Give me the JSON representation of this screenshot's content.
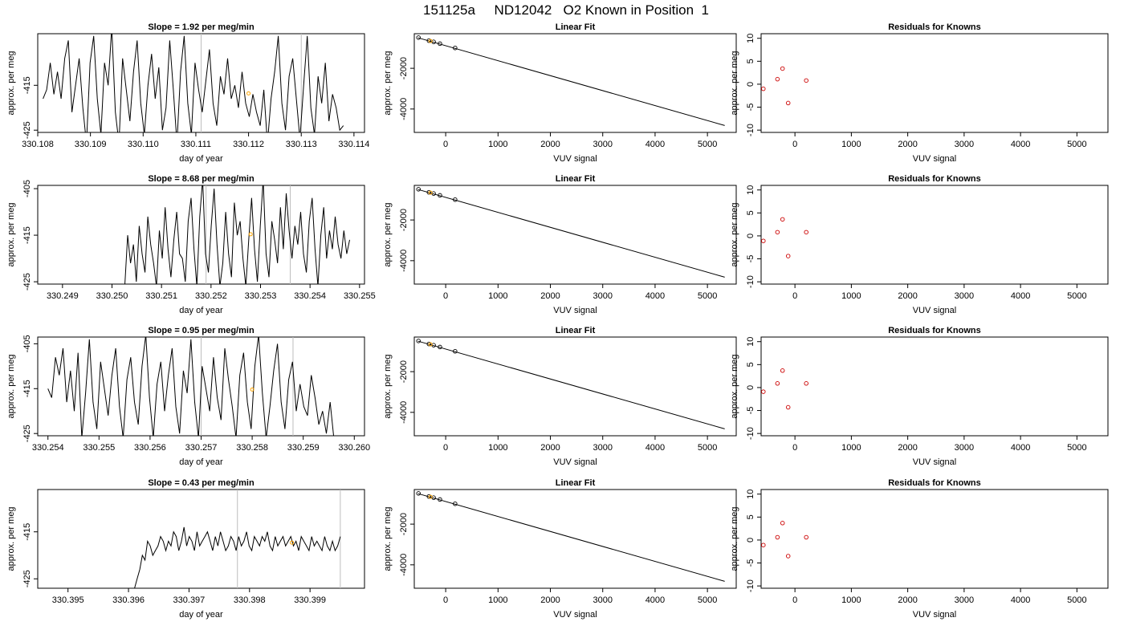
{
  "page_title": "151125a     ND12042   O2 Known in Position  1",
  "colors": {
    "trace": "#000000",
    "highlight": "#FFA500",
    "residual": "#CC0000",
    "vline": "#BEBEBE",
    "axis": "#000000"
  },
  "chart_data": [
    {
      "type": "line",
      "row": 0,
      "panel": "time",
      "title": "Slope =  1.92  per meg/min",
      "xlabel": "day of year",
      "ylabel": "approx. per meg",
      "xlim": [
        330.108,
        330.1142
      ],
      "ylim": [
        -425.5,
        -403.5
      ],
      "xticks": [
        "330.108",
        "330.109",
        "330.110",
        "330.111",
        "330.112",
        "330.113",
        "330.114"
      ],
      "yticks": [
        "-415",
        "-425"
      ],
      "vlines": [
        330.1111,
        330.113
      ],
      "highlight_points": [
        {
          "x": 330.112,
          "y": -416.8
        }
      ],
      "series": [
        {
          "x_start": 330.1081,
          "x_end": 330.1138,
          "values": [
            -418,
            -416,
            -410,
            -417,
            -412,
            -418,
            -409,
            -405,
            -421,
            -415,
            -409,
            -420,
            -428,
            -410,
            -404,
            -418,
            -426,
            -410,
            -415,
            -402,
            -421,
            -428,
            -409,
            -416,
            -423,
            -412,
            -405,
            -419,
            -426,
            -415,
            -408,
            -418,
            -411,
            -425,
            -420,
            -405,
            -416,
            -428,
            -412,
            -404,
            -419,
            -426,
            -410,
            -416,
            -421,
            -414,
            -407,
            -419,
            -424,
            -413,
            -417,
            -409,
            -418,
            -415,
            -420,
            -412,
            -419,
            -422,
            -417,
            -421,
            -424,
            -416,
            -428,
            -418,
            -412,
            -404,
            -419,
            -425,
            -413,
            -409,
            -418,
            -427,
            -415,
            -404,
            -420,
            -426,
            -413,
            -419,
            -410,
            -423,
            -417,
            -420,
            -425,
            -424
          ]
        }
      ]
    },
    {
      "type": "scatter",
      "row": 0,
      "panel": "fit",
      "title": "Linear Fit",
      "xlabel": "VUV signal",
      "ylabel": "approx. per meg",
      "xlim": [
        -600,
        5550
      ],
      "ylim": [
        -5150,
        -300
      ],
      "xticks": [
        "0",
        "1000",
        "2000",
        "3000",
        "4000",
        "5000"
      ],
      "yticks": [
        "-2000",
        "-4000"
      ],
      "fit_line": {
        "x": [
          -530,
          5330
        ],
        "y": [
          -500,
          -4810
        ]
      },
      "points": [
        {
          "x": -520,
          "y": -490
        },
        {
          "x": -320,
          "y": -640
        },
        {
          "x": -230,
          "y": -700
        },
        {
          "x": -110,
          "y": -790
        },
        {
          "x": 180,
          "y": -1000
        }
      ],
      "highlight_points": [
        {
          "x": -290,
          "y": -660
        }
      ]
    },
    {
      "type": "scatter",
      "row": 0,
      "panel": "residuals",
      "title": "Residuals for Knowns",
      "xlabel": "VUV signal",
      "ylabel": "approx. per meg",
      "xlim": [
        -600,
        5550
      ],
      "ylim": [
        -10.5,
        11
      ],
      "xticks": [
        "0",
        "1000",
        "2000",
        "3000",
        "4000",
        "5000"
      ],
      "yticks": [
        "10",
        "5",
        "0",
        "-5",
        "-10"
      ],
      "points": [
        {
          "x": -560,
          "y": -1.0
        },
        {
          "x": -310,
          "y": 1.1
        },
        {
          "x": -220,
          "y": 3.4
        },
        {
          "x": -120,
          "y": -4.1
        },
        {
          "x": 200,
          "y": 0.8
        }
      ]
    },
    {
      "type": "line",
      "row": 1,
      "panel": "time",
      "title": "Slope =  8.68  per meg/min",
      "xlabel": "day of year",
      "ylabel": "approx. per meg",
      "xlim": [
        330.2485,
        330.2551
      ],
      "ylim": [
        -425.5,
        -404.3
      ],
      "xticks": [
        "330.249",
        "330.250",
        "330.251",
        "330.252",
        "330.253",
        "330.254",
        "330.255"
      ],
      "yticks": [
        "-405",
        "-415",
        "-425"
      ],
      "vlines": [
        330.2519,
        330.2536
      ],
      "highlight_points": [
        {
          "x": 330.2528,
          "y": -414.8
        }
      ],
      "series": [
        {
          "x_start": 330.2502,
          "x_end": 330.2548,
          "values": [
            -426,
            -426,
            -415,
            -421,
            -417,
            -425,
            -413,
            -419,
            -423,
            -411,
            -417,
            -421,
            -426,
            -414,
            -420,
            -409,
            -418,
            -424,
            -416,
            -410,
            -419,
            -420,
            -425,
            -412,
            -407,
            -418,
            -426,
            -411,
            -403,
            -419,
            -423,
            -413,
            -405,
            -417,
            -426,
            -421,
            -410,
            -419,
            -424,
            -408,
            -415,
            -412,
            -420,
            -426,
            -416,
            -407,
            -418,
            -425,
            -413,
            -403,
            -419,
            -424,
            -412,
            -416,
            -421,
            -409,
            -418,
            -406,
            -414,
            -420,
            -413,
            -417,
            -410,
            -419,
            -423,
            -412,
            -407,
            -418,
            -426,
            -415,
            -409,
            -420,
            -414,
            -418,
            -411,
            -417,
            -420,
            -414,
            -419,
            -416
          ]
        }
      ]
    },
    {
      "type": "scatter",
      "row": 1,
      "panel": "fit",
      "title": "Linear Fit",
      "xlabel": "VUV signal",
      "ylabel": "approx. per meg",
      "xlim": [
        -600,
        5550
      ],
      "ylim": [
        -5150,
        -300
      ],
      "xticks": [
        "0",
        "1000",
        "2000",
        "3000",
        "4000",
        "5000"
      ],
      "yticks": [
        "-2000",
        "-4000"
      ],
      "fit_line": {
        "x": [
          -530,
          5330
        ],
        "y": [
          -500,
          -4810
        ]
      },
      "points": [
        {
          "x": -520,
          "y": -490
        },
        {
          "x": -320,
          "y": -640
        },
        {
          "x": -230,
          "y": -700
        },
        {
          "x": -110,
          "y": -790
        },
        {
          "x": 180,
          "y": -1000
        }
      ],
      "highlight_points": [
        {
          "x": -290,
          "y": -660
        }
      ]
    },
    {
      "type": "scatter",
      "row": 1,
      "panel": "residuals",
      "title": "Residuals for Knowns",
      "xlabel": "VUV signal",
      "ylabel": "approx. per meg",
      "xlim": [
        -600,
        5550
      ],
      "ylim": [
        -10.5,
        11
      ],
      "xticks": [
        "0",
        "1000",
        "2000",
        "3000",
        "4000",
        "5000"
      ],
      "yticks": [
        "10",
        "5",
        "0",
        "-5",
        "-10"
      ],
      "points": [
        {
          "x": -560,
          "y": -1.1
        },
        {
          "x": -310,
          "y": 0.8
        },
        {
          "x": -220,
          "y": 3.6
        },
        {
          "x": -120,
          "y": -4.4
        },
        {
          "x": 200,
          "y": 0.8
        }
      ]
    },
    {
      "type": "line",
      "row": 2,
      "panel": "time",
      "title": "Slope =  0.95  per meg/min",
      "xlabel": "day of year",
      "ylabel": "approx. per meg",
      "xlim": [
        330.2538,
        330.2602
      ],
      "ylim": [
        -425.5,
        -403.5
      ],
      "xticks": [
        "330.254",
        "330.255",
        "330.256",
        "330.257",
        "330.258",
        "330.259",
        "330.260"
      ],
      "yticks": [
        "-405",
        "-415",
        "-425"
      ],
      "vlines": [
        330.257,
        330.2588
      ],
      "highlight_points": [
        {
          "x": 330.258,
          "y": -415.2
        }
      ],
      "series": [
        {
          "x_start": 330.254,
          "x_end": 330.2596,
          "values": [
            -415,
            -417,
            -408,
            -412,
            -406,
            -418,
            -411,
            -420,
            -407,
            -426,
            -416,
            -404,
            -418,
            -424,
            -409,
            -415,
            -421,
            -412,
            -406,
            -419,
            -426,
            -413,
            -408,
            -418,
            -423,
            -410,
            -403,
            -417,
            -426,
            -414,
            -409,
            -420,
            -412,
            -406,
            -419,
            -425,
            -411,
            -416,
            -404,
            -418,
            -426,
            -410,
            -415,
            -420,
            -408,
            -417,
            -422,
            -406,
            -413,
            -419,
            -426,
            -412,
            -407,
            -418,
            -424,
            -410,
            -403,
            -416,
            -426,
            -419,
            -411,
            -405,
            -418,
            -424,
            -413,
            -409,
            -420,
            -414,
            -419,
            -421,
            -412,
            -417,
            -423,
            -420,
            -425,
            -418,
            -426
          ]
        }
      ]
    },
    {
      "type": "scatter",
      "row": 2,
      "panel": "fit",
      "title": "Linear Fit",
      "xlabel": "VUV signal",
      "ylabel": "approx. per meg",
      "xlim": [
        -600,
        5550
      ],
      "ylim": [
        -5150,
        -300
      ],
      "xticks": [
        "0",
        "1000",
        "2000",
        "3000",
        "4000",
        "5000"
      ],
      "yticks": [
        "-2000",
        "-4000"
      ],
      "fit_line": {
        "x": [
          -530,
          5330
        ],
        "y": [
          -500,
          -4810
        ]
      },
      "points": [
        {
          "x": -520,
          "y": -490
        },
        {
          "x": -320,
          "y": -640
        },
        {
          "x": -230,
          "y": -700
        },
        {
          "x": -110,
          "y": -790
        },
        {
          "x": 180,
          "y": -1000
        }
      ],
      "highlight_points": [
        {
          "x": -290,
          "y": -660
        }
      ]
    },
    {
      "type": "scatter",
      "row": 2,
      "panel": "residuals",
      "title": "Residuals for Knowns",
      "xlabel": "VUV signal",
      "ylabel": "approx. per meg",
      "xlim": [
        -600,
        5550
      ],
      "ylim": [
        -10.5,
        11
      ],
      "xticks": [
        "0",
        "1000",
        "2000",
        "3000",
        "4000",
        "5000"
      ],
      "yticks": [
        "10",
        "5",
        "0",
        "-5",
        "-10"
      ],
      "points": [
        {
          "x": -560,
          "y": -0.9
        },
        {
          "x": -310,
          "y": 0.9
        },
        {
          "x": -220,
          "y": 3.7
        },
        {
          "x": -120,
          "y": -4.3
        },
        {
          "x": 200,
          "y": 0.9
        }
      ]
    },
    {
      "type": "line",
      "row": 3,
      "panel": "time",
      "title": "Slope =  0.43  per meg/min",
      "xlabel": "day of year",
      "ylabel": "approx. per meg",
      "xlim": [
        330.3945,
        330.3999
      ],
      "ylim": [
        -427,
        -406
      ],
      "xticks": [
        "330.395",
        "330.396",
        "330.397",
        "330.398",
        "330.399"
      ],
      "yticks": [
        "-415",
        "-425"
      ],
      "vlines": [
        330.3978,
        330.3995
      ],
      "highlight_points": [
        {
          "x": 330.3987,
          "y": -417.3
        }
      ],
      "series": [
        {
          "x_start": 330.3961,
          "x_end": 330.3995,
          "values": [
            -427,
            -425,
            -423,
            -420,
            -421,
            -417,
            -418,
            -420,
            -419,
            -418,
            -416,
            -417,
            -419,
            -417,
            -418,
            -415,
            -416,
            -419,
            -417,
            -414,
            -418,
            -416,
            -417,
            -419,
            -415,
            -418,
            -417,
            -416,
            -415,
            -417,
            -419,
            -416,
            -418,
            -415,
            -417,
            -419,
            -418,
            -416,
            -417,
            -419,
            -416,
            -418,
            -417,
            -415,
            -418,
            -419,
            -416,
            -417,
            -418,
            -416,
            -417,
            -415,
            -418,
            -419,
            -416,
            -418,
            -417,
            -416,
            -418,
            -417,
            -416,
            -418,
            -417,
            -419,
            -416,
            -417,
            -418,
            -419,
            -416,
            -418,
            -417,
            -418,
            -419,
            -416,
            -418,
            -419,
            -417,
            -419,
            -418,
            -416
          ]
        }
      ]
    },
    {
      "type": "scatter",
      "row": 3,
      "panel": "fit",
      "title": "Linear Fit",
      "xlabel": "VUV signal",
      "ylabel": "approx. per meg",
      "xlim": [
        -600,
        5550
      ],
      "ylim": [
        -5150,
        -300
      ],
      "xticks": [
        "0",
        "1000",
        "2000",
        "3000",
        "4000",
        "5000"
      ],
      "yticks": [
        "-2000",
        "-4000"
      ],
      "fit_line": {
        "x": [
          -530,
          5330
        ],
        "y": [
          -500,
          -4810
        ]
      },
      "points": [
        {
          "x": -520,
          "y": -490
        },
        {
          "x": -320,
          "y": -640
        },
        {
          "x": -230,
          "y": -700
        },
        {
          "x": -110,
          "y": -790
        },
        {
          "x": 180,
          "y": -1000
        }
      ],
      "highlight_points": [
        {
          "x": -290,
          "y": -660
        }
      ]
    },
    {
      "type": "scatter",
      "row": 3,
      "panel": "residuals",
      "title": "Residuals for Knowns",
      "xlabel": "VUV signal",
      "ylabel": "approx. per meg",
      "xlim": [
        -600,
        5550
      ],
      "ylim": [
        -10.5,
        11
      ],
      "xticks": [
        "0",
        "1000",
        "2000",
        "3000",
        "4000",
        "5000"
      ],
      "yticks": [
        "10",
        "5",
        "0",
        "-5",
        "-10"
      ],
      "points": [
        {
          "x": -560,
          "y": -1.1
        },
        {
          "x": -310,
          "y": 0.6
        },
        {
          "x": -220,
          "y": 3.7
        },
        {
          "x": -120,
          "y": -3.5
        },
        {
          "x": 200,
          "y": 0.6
        }
      ]
    }
  ]
}
